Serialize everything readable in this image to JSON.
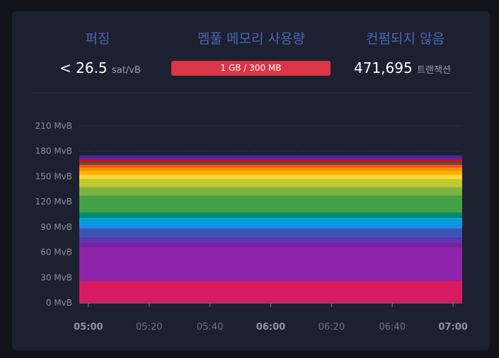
{
  "stats": {
    "fee": {
      "title": "퍼징",
      "value": "< 26.5",
      "unit": "sat/vB"
    },
    "memory": {
      "title": "멤풀 메모리 사용량",
      "value": "1 GB / 300 MB"
    },
    "unconfirmed": {
      "title": "컨펌되지 않음",
      "value": "471,695",
      "unit": "트랜잭션"
    }
  },
  "chart_data": {
    "type": "area",
    "stacked": true,
    "y_unit": "MvB",
    "ylim": [
      0,
      210
    ],
    "y_ticks": [
      "0 MvB",
      "30 MvB",
      "60 MvB",
      "90 MvB",
      "120 MvB",
      "150 MvB",
      "180 MvB",
      "210 MvB"
    ],
    "x_ticks": [
      {
        "label": "05:00",
        "bold": true
      },
      {
        "label": "05:20",
        "bold": false
      },
      {
        "label": "05:40",
        "bold": false
      },
      {
        "label": "06:00",
        "bold": true
      },
      {
        "label": "06:20",
        "bold": false
      },
      {
        "label": "06:40",
        "bold": false
      },
      {
        "label": "07:00",
        "bold": true
      }
    ],
    "x_range": [
      "04:57",
      "07:03"
    ],
    "grid": true,
    "series": [
      {
        "color": "#d81b60",
        "value": 26
      },
      {
        "color": "#8e24aa",
        "value": 40
      },
      {
        "color": "#7b1fa2",
        "value": 5
      },
      {
        "color": "#5e35b1",
        "value": 6
      },
      {
        "color": "#3f51b5",
        "value": 11
      },
      {
        "color": "#1e88e5",
        "value": 4
      },
      {
        "color": "#039be5",
        "value": 6
      },
      {
        "color": "#00acc1",
        "value": 3
      },
      {
        "color": "#00897b",
        "value": 6
      },
      {
        "color": "#43a047",
        "value": 20
      },
      {
        "color": "#7cb342",
        "value": 10
      },
      {
        "color": "#c0ca33",
        "value": 10
      },
      {
        "color": "#fdd835",
        "value": 5
      },
      {
        "color": "#ffb300",
        "value": 5
      },
      {
        "color": "#fb8c00",
        "value": 4
      },
      {
        "color": "#f4511e",
        "value": 3
      },
      {
        "color": "#6d4c41",
        "value": 3
      },
      {
        "color": "#b71c1c",
        "value": 3
      },
      {
        "color": "#7b1fa2",
        "value": 2
      },
      {
        "color": "#4527a0",
        "value": 3
      }
    ]
  }
}
